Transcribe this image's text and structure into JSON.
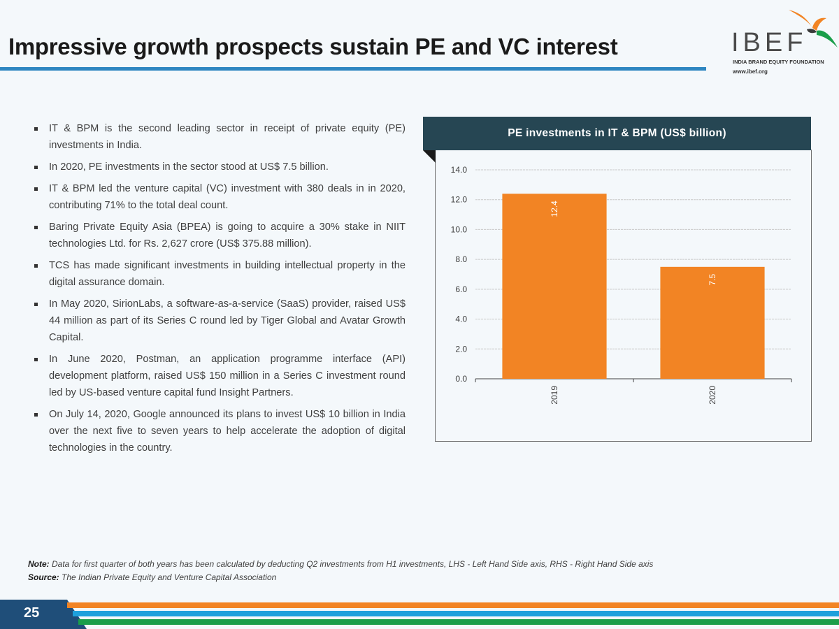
{
  "slide": {
    "title": "Impressive growth prospects sustain PE and VC interest",
    "page_number": "25"
  },
  "logo": {
    "wordmark": "IBEF",
    "subtitle": "INDIA BRAND EQUITY FOUNDATION",
    "url": "www.ibef.org"
  },
  "bullets": [
    "IT & BPM is the second leading sector in receipt of private equity (PE) investments in India.",
    "In 2020, PE investments in the sector stood at US$ 7.5 billion.",
    "IT & BPM led the venture capital (VC) investment with 380 deals in in 2020, contributing 71% to the total deal count.",
    "Baring Private Equity Asia (BPEA) is going to acquire a 30% stake in NIIT technologies Ltd. for Rs. 2,627 crore (US$ 375.88 million).",
    "TCS has made significant investments in building intellectual property in the digital assurance domain.",
    "In May 2020, SirionLabs, a software-as-a-service (SaaS) provider, raised US$ 44 million as part of its Series C round led by Tiger Global and Avatar Growth Capital.",
    "In June 2020, Postman, an application programme interface (API) development platform, raised US$ 150 million in a Series C investment round led by US-based venture capital fund Insight Partners.",
    "On July 14, 2020, Google announced its plans to invest US$ 10 billion in India over the next five to seven years to help accelerate the adoption of digital technologies in the country."
  ],
  "chart_data": {
    "type": "bar",
    "title": "PE investments in IT & BPM (US$ billion)",
    "categories": [
      "2019",
      "2020"
    ],
    "values": [
      12.4,
      7.5
    ],
    "data_labels": [
      "12.4",
      "7.5"
    ],
    "ylim": [
      0,
      14
    ],
    "yticks": [
      "0.0",
      "2.0",
      "4.0",
      "6.0",
      "8.0",
      "10.0",
      "12.0",
      "14.0"
    ],
    "xlabel": "",
    "ylabel": "",
    "grid": true,
    "bar_color": "#f28424"
  },
  "footer": {
    "note_label": "Note:",
    "note_text": " Data for first quarter of both years has been calculated by deducting Q2 investments from H1 investments, LHS - Left Hand Side axis, RHS - Right Hand Side axis",
    "source_label": "Source:",
    "source_text": " The Indian Private Equity and Venture Capital Association"
  },
  "colors": {
    "header_dark": "#264653",
    "accent_blue": "#2e86c1",
    "accent_orange": "#f28424",
    "accent_green": "#1a9e4a",
    "page_tab": "#1f4e79"
  }
}
